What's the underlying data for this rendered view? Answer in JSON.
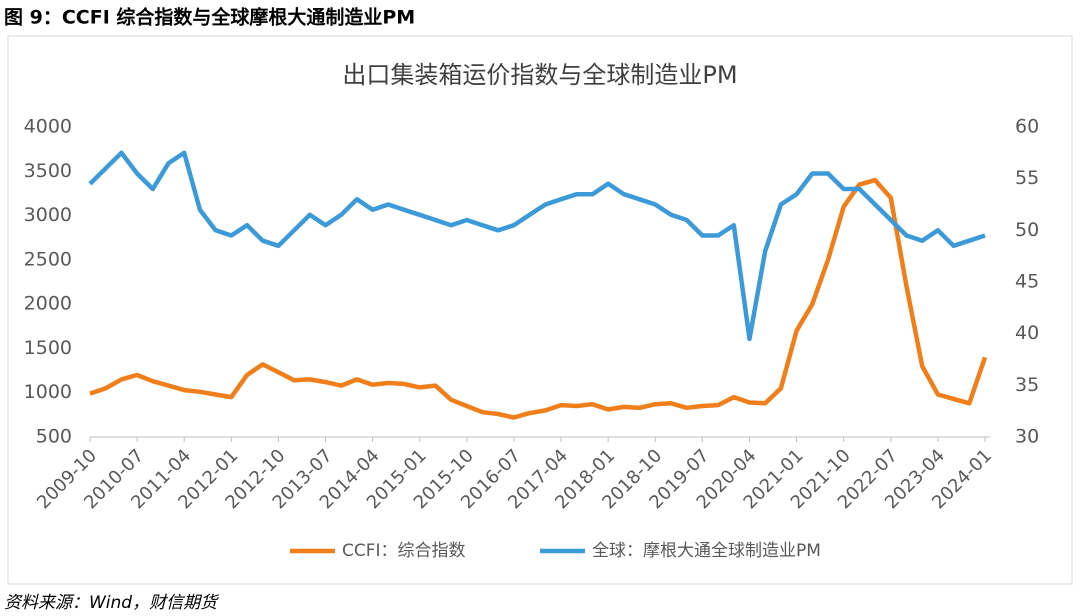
{
  "figure_title": "图 9：CCFI 综合指数与全球摩根大通制造业PM",
  "source": "资料来源：Wind，财信期货",
  "chart_data": {
    "type": "line",
    "title": "出口集装箱运价指数与全球制造业PM",
    "categories": [
      "2009-10",
      null,
      null,
      "2010-07",
      null,
      null,
      "2011-04",
      null,
      null,
      "2012-01",
      null,
      null,
      "2012-10",
      null,
      null,
      "2013-07",
      null,
      null,
      "2014-04",
      null,
      null,
      "2015-01",
      null,
      null,
      "2015-10",
      null,
      null,
      "2016-07",
      null,
      null,
      "2017-04",
      null,
      null,
      "2018-01",
      null,
      null,
      "2018-10",
      null,
      null,
      "2019-07",
      null,
      null,
      "2020-04",
      null,
      null,
      "2021-01",
      null,
      null,
      "2021-10",
      null,
      null,
      "2022-07",
      null,
      null,
      "2023-04",
      null,
      null,
      "2024-01"
    ],
    "series": [
      {
        "name": "CCFI：综合指数",
        "color": "#f07f1b",
        "values": [
          990,
          1050,
          1150,
          1200,
          1130,
          1080,
          1030,
          1010,
          980,
          950,
          1200,
          1320,
          1230,
          1140,
          1150,
          1120,
          1080,
          1150,
          1090,
          1110,
          1100,
          1060,
          1080,
          920,
          850,
          780,
          760,
          720,
          770,
          800,
          860,
          850,
          870,
          810,
          840,
          830,
          870,
          880,
          830,
          850,
          860,
          950,
          890,
          880,
          1050,
          1700,
          2000,
          2500,
          3100,
          3350,
          3400,
          3200,
          2200,
          1300,
          980,
          930,
          880,
          1400
        ]
      },
      {
        "name": "全球：摩根大通全球制造业PM",
        "color": "#3d9ad9",
        "axis": "y2",
        "values": [
          54.5,
          56,
          57.5,
          55.5,
          54,
          56.5,
          57.5,
          52,
          50,
          49.5,
          50.5,
          49,
          48.5,
          50,
          51.5,
          50.5,
          51.5,
          53,
          52,
          52.5,
          52,
          51.5,
          51,
          50.5,
          51,
          50.5,
          50,
          50.5,
          51.5,
          52.5,
          53,
          53.5,
          53.5,
          54.5,
          53.5,
          53,
          52.5,
          51.5,
          51,
          49.5,
          49.5,
          50.5,
          39.5,
          48,
          52.5,
          53.5,
          55.5,
          55.5,
          54,
          54,
          52.5,
          51,
          49.5,
          49,
          50,
          48.5,
          49,
          49.5
        ]
      }
    ],
    "ylim": [
      500,
      4000
    ],
    "yticks": [
      500,
      1000,
      1500,
      2000,
      2500,
      3000,
      3500,
      4000
    ],
    "y2lim": [
      30,
      60
    ],
    "y2ticks": [
      30,
      35,
      40,
      45,
      50,
      55,
      60
    ],
    "legend": "bottom"
  }
}
